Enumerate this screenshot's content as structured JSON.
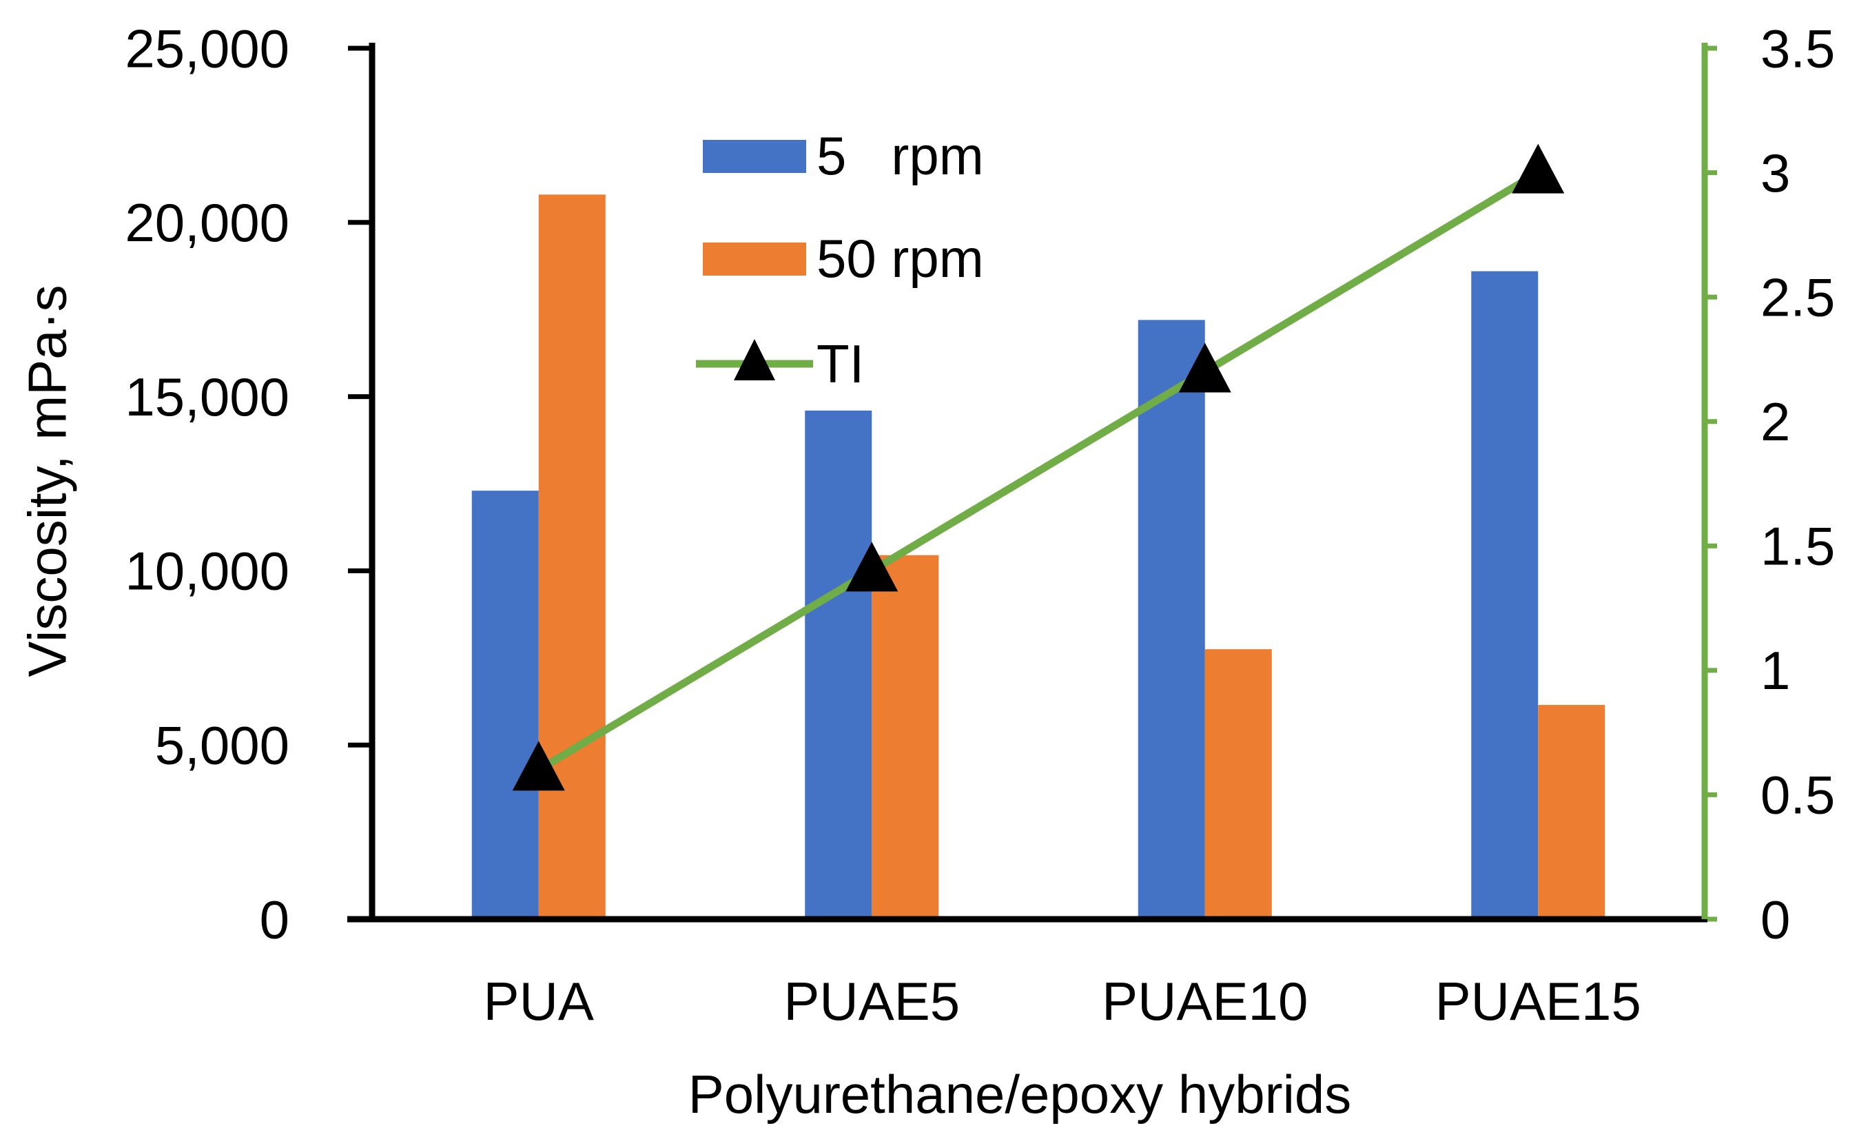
{
  "chart_data": {
    "type": "bar",
    "categories": [
      "PUA",
      "PUAE5",
      "PUAE10",
      "PUAE15"
    ],
    "series": [
      {
        "name": "5   rpm",
        "kind": "bar",
        "axis": "left",
        "color": "#4472C4",
        "values": [
          12300,
          14600,
          17200,
          18600
        ]
      },
      {
        "name": "50 rpm",
        "kind": "bar",
        "axis": "left",
        "color": "#ED7D31",
        "values": [
          20800,
          10450,
          7750,
          6150
        ]
      },
      {
        "name": "TI",
        "kind": "line",
        "axis": "right",
        "color": "#70AD47",
        "marker": "triangle",
        "values": [
          0.6,
          1.4,
          2.2,
          3.0
        ]
      }
    ],
    "xlabel": "Polyurethane/epoxy hybrids",
    "ylabel": "Viscosity, mPa·s",
    "ylim": [
      0,
      25000
    ],
    "y2lim": [
      0,
      3.5
    ],
    "yticks": [
      "0",
      "5,000",
      "10,000",
      "15,000",
      "20,000",
      "25,000"
    ],
    "y2ticks": [
      "0",
      "0.5",
      "1",
      "1.5",
      "2",
      "2.5",
      "3",
      "3.5"
    ],
    "legend": "top-center",
    "grid": false
  }
}
